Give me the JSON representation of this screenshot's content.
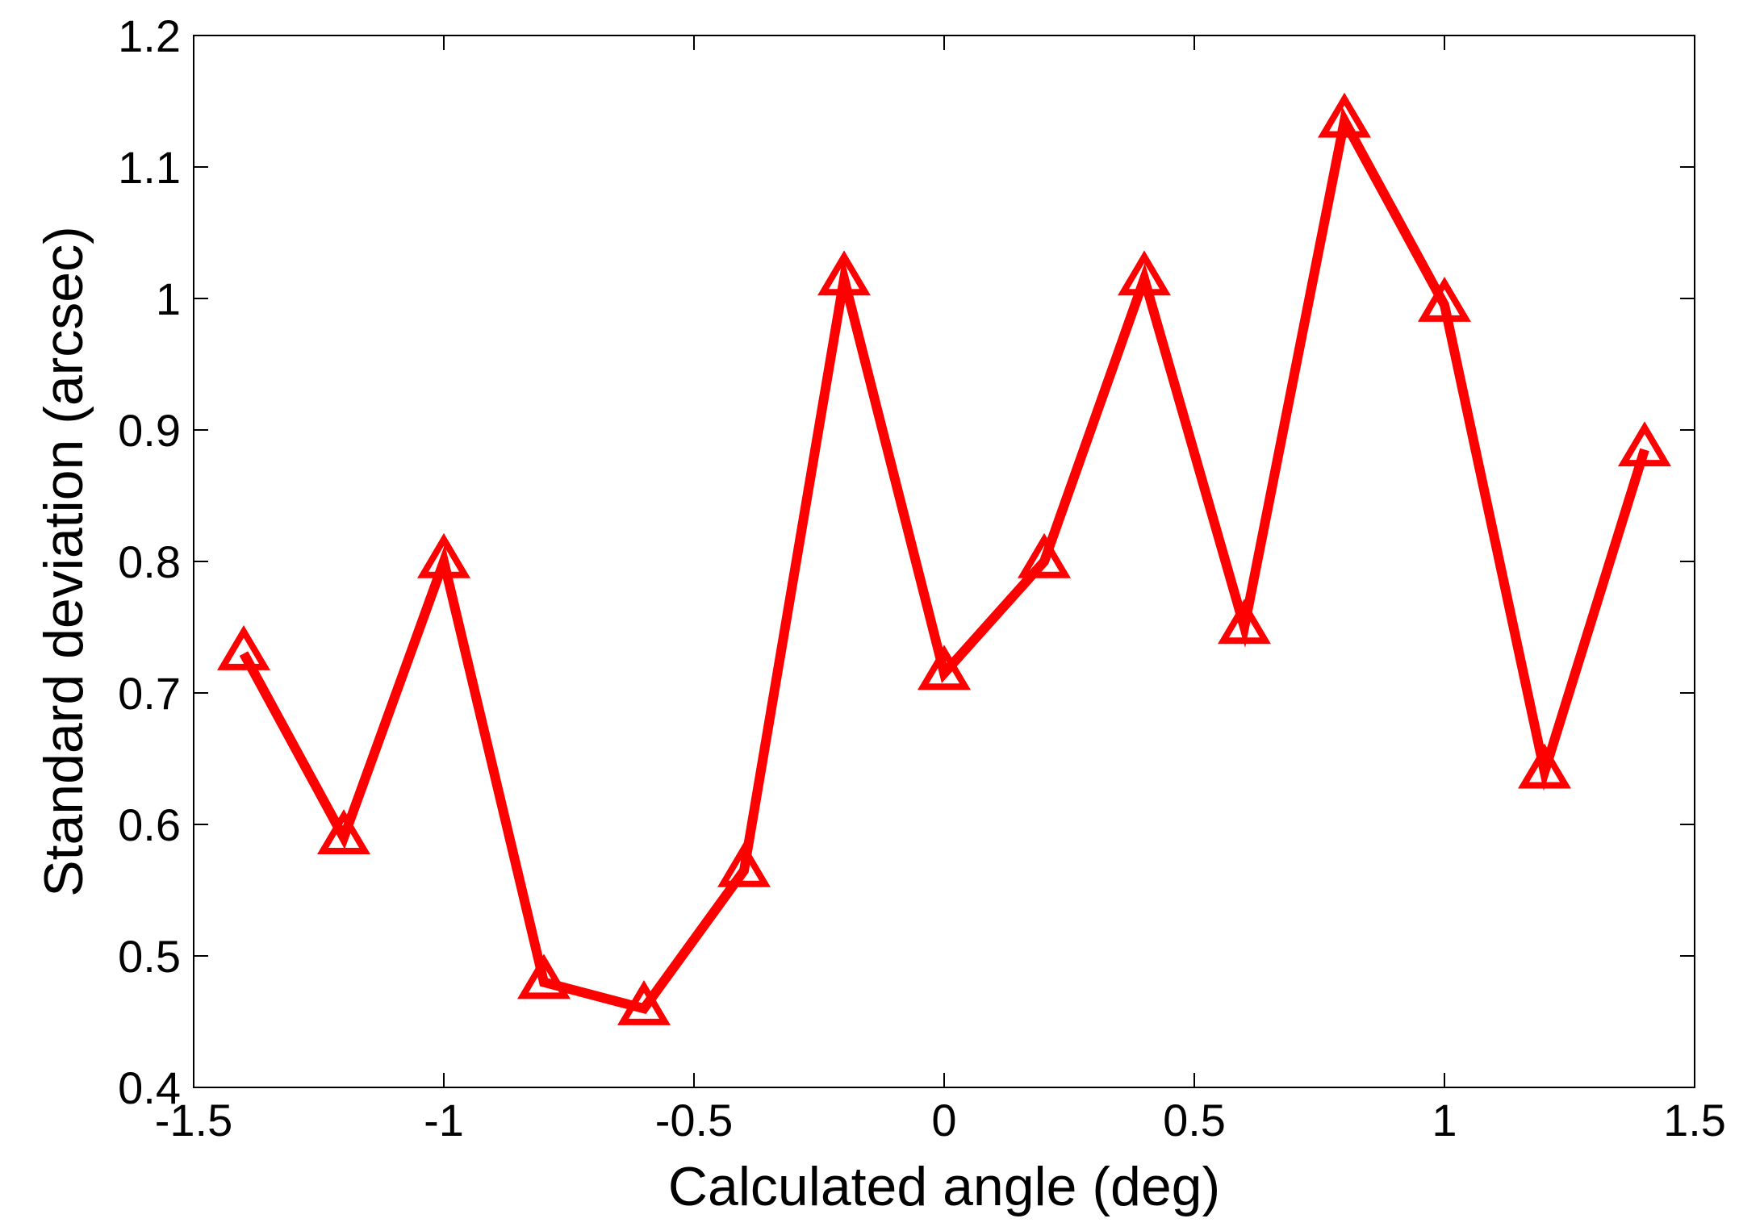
{
  "chart_data": {
    "type": "line",
    "title": "",
    "xlabel": "Calculated angle (deg)",
    "ylabel": "Standard deviation (arcsec)",
    "xlim": [
      -1.5,
      1.5
    ],
    "ylim": [
      0.4,
      1.2
    ],
    "xticks": [
      -1.5,
      -1,
      -0.5,
      0,
      0.5,
      1,
      1.5
    ],
    "xtick_labels": [
      "-1.5",
      "-1",
      "-0.5",
      "0",
      "0.5",
      "1",
      "1.5"
    ],
    "yticks": [
      0.4,
      0.5,
      0.6,
      0.7,
      0.8,
      0.9,
      1.0,
      1.1,
      1.2
    ],
    "ytick_labels": [
      "0.4",
      "0.5",
      "0.6",
      "0.7",
      "0.8",
      "0.9",
      "1",
      "1.1",
      "1.2"
    ],
    "grid": false,
    "series": [
      {
        "color": "#ff0000",
        "marker": "triangle",
        "x": [
          -1.4,
          -1.2,
          -1.0,
          -0.8,
          -0.6,
          -0.4,
          -0.2,
          0.0,
          0.2,
          0.4,
          0.6,
          0.8,
          1.0,
          1.2,
          1.4
        ],
        "y": [
          0.73,
          0.59,
          0.8,
          0.48,
          0.46,
          0.565,
          1.015,
          0.715,
          0.8,
          1.015,
          0.75,
          1.135,
          0.995,
          0.64,
          0.885
        ]
      }
    ]
  }
}
